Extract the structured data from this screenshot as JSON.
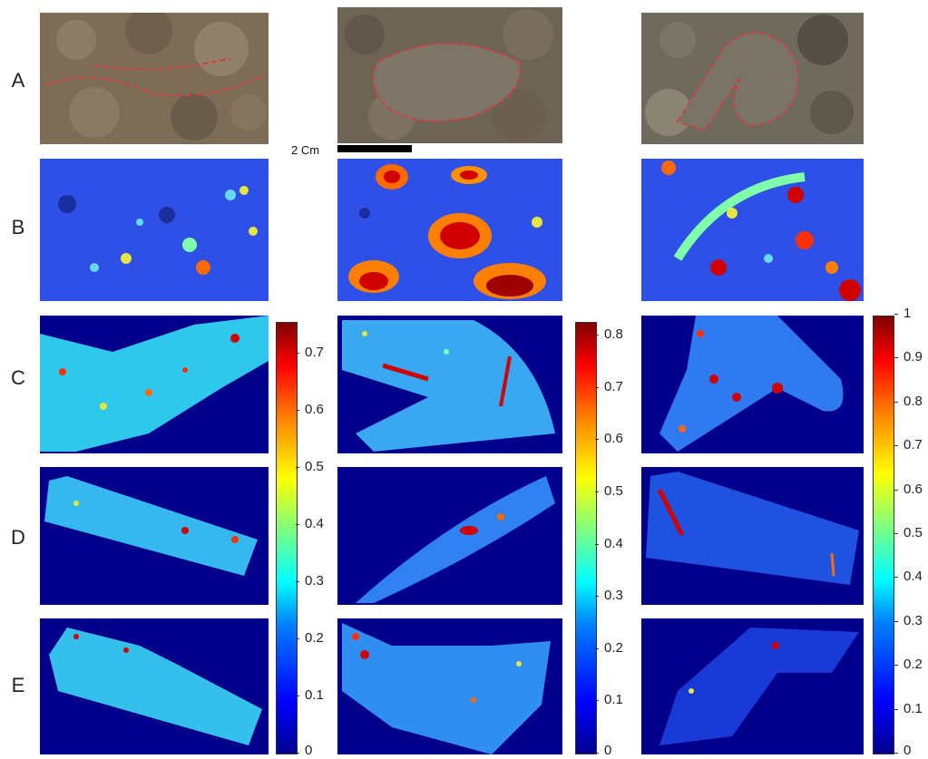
{
  "row_labels": [
    "A",
    "B",
    "C",
    "D",
    "E"
  ],
  "scale_bar": {
    "label": "2 Cm"
  },
  "colorbars": [
    {
      "ticks": [
        "0",
        "0.1",
        "0.2",
        "0.3",
        "0.4",
        "0.5",
        "0.6",
        "0.7"
      ]
    },
    {
      "ticks": [
        "0",
        "0.1",
        "0.2",
        "0.3",
        "0.4",
        "0.5",
        "0.6",
        "0.7",
        "0.8"
      ]
    },
    {
      "ticks": [
        "0",
        "0.1",
        "0.2",
        "0.3",
        "0.4",
        "0.5",
        "0.6",
        "0.7",
        "0.8",
        "0.9",
        "1"
      ]
    }
  ],
  "colors": {
    "low": "#00008f",
    "mid": "#00ffff",
    "high": "#ff0000",
    "background": "#ffffff"
  }
}
